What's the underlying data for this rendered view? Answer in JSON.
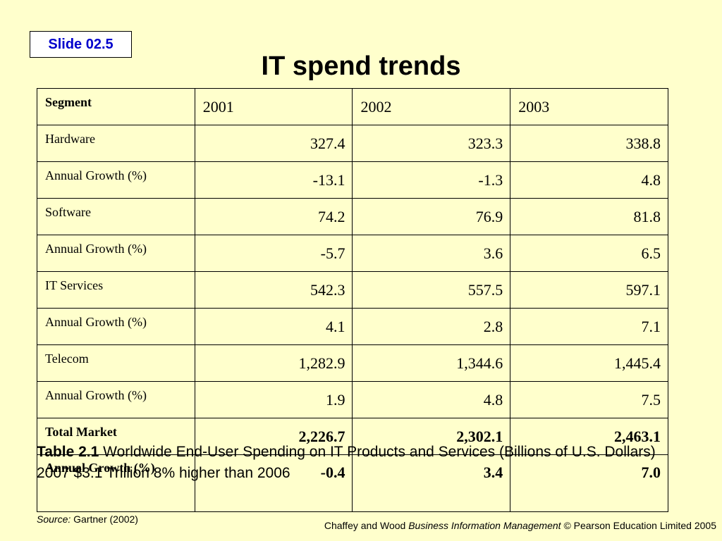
{
  "slide_label": "Slide 02.5",
  "title": "IT spend trends",
  "table": {
    "headers": [
      "Segment",
      "2001",
      "2002",
      "2003"
    ],
    "rows": [
      {
        "label": "Hardware",
        "values": [
          "327.4",
          "323.3",
          "338.8"
        ]
      },
      {
        "label": "Annual Growth (%)",
        "values": [
          "-13.1",
          "-1.3",
          "4.8"
        ]
      },
      {
        "label": "Software",
        "values": [
          "74.2",
          "76.9",
          "81.8"
        ]
      },
      {
        "label": "Annual Growth (%)",
        "values": [
          "-5.7",
          "3.6",
          "6.5"
        ]
      },
      {
        "label": "IT Services",
        "values": [
          "542.3",
          "557.5",
          "597.1"
        ]
      },
      {
        "label": "Annual Growth (%)",
        "values": [
          "4.1",
          "2.8",
          "7.1"
        ]
      },
      {
        "label": "Telecom",
        "values": [
          "1,282.9",
          "1,344.6",
          "1,445.4"
        ]
      },
      {
        "label": "Annual Growth (%)",
        "values": [
          "1.9",
          "4.8",
          "7.5"
        ]
      },
      {
        "label": "Total Market",
        "values": [
          "2,226.7",
          "2,302.1",
          "2,463.1"
        ]
      },
      {
        "label": "Annual Growth (%)",
        "values": [
          "-0.4",
          "3.4",
          "7.0"
        ]
      }
    ]
  },
  "caption": {
    "label": "Table 2.1",
    "text": "Worldwide End-User Spending on IT Products and Services (Billions of U.S. Dollars) 2007 $3.1 Trillion 8% higher than 2006"
  },
  "source": {
    "label": "Source:",
    "text": "Gartner (2002)"
  },
  "footer": {
    "authors": "Chaffey and Wood",
    "book": "Business Information Management",
    "rights": "© Pearson Education Limited 2005"
  }
}
